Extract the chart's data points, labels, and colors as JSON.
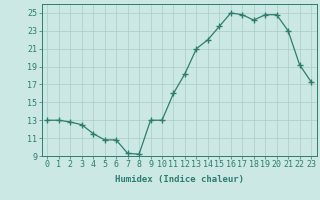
{
  "x": [
    0,
    1,
    2,
    3,
    4,
    5,
    6,
    7,
    8,
    9,
    10,
    11,
    12,
    13,
    14,
    15,
    16,
    17,
    18,
    19,
    20,
    21,
    22,
    23
  ],
  "y": [
    13,
    13,
    12.8,
    12.5,
    11.5,
    10.8,
    10.8,
    9.3,
    9.2,
    13,
    13,
    16,
    18.2,
    21,
    22,
    23.5,
    25,
    24.8,
    24.2,
    24.8,
    24.8,
    23,
    19.2,
    17.3
  ],
  "line_color": "#2d7d6e",
  "marker": "+",
  "marker_size": 4,
  "bg_color": "#cce8e4",
  "grid_color": "#aaccc8",
  "tick_color": "#2d7d6e",
  "xlabel": "Humidex (Indice chaleur)",
  "xlim": [
    -0.5,
    23.5
  ],
  "ylim": [
    9,
    26
  ],
  "yticks": [
    9,
    11,
    13,
    15,
    17,
    19,
    21,
    23,
    25
  ],
  "xticks": [
    0,
    1,
    2,
    3,
    4,
    5,
    6,
    7,
    8,
    9,
    10,
    11,
    12,
    13,
    14,
    15,
    16,
    17,
    18,
    19,
    20,
    21,
    22,
    23
  ],
  "label_fontsize": 6.5,
  "tick_fontsize": 6.0
}
